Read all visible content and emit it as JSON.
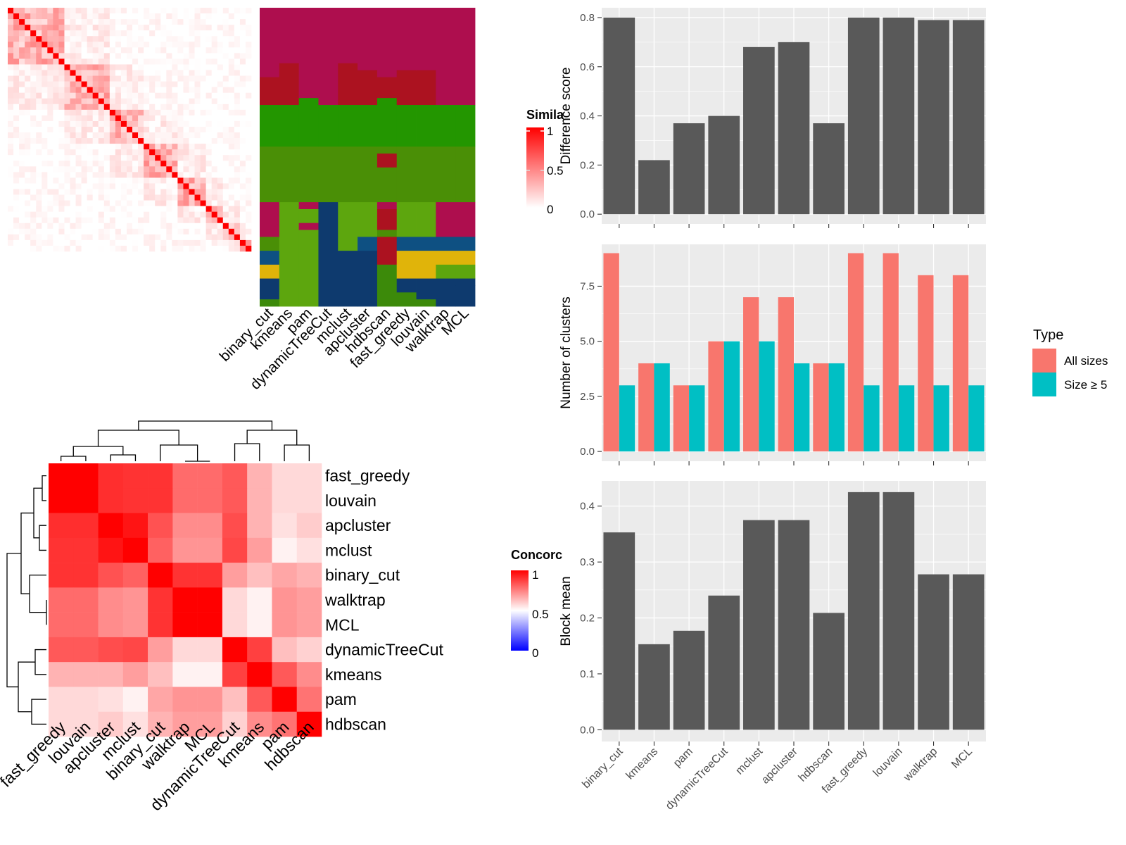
{
  "colors": {
    "panel_bg": "#EBEBEB",
    "grid": "#FFFFFF",
    "bar_dark": "#595959",
    "all_sizes": "#F8766D",
    "size5": "#00BFC4",
    "sim_high": "#FF0000",
    "sim_low": "#FFFFFF",
    "conc_low": "#0000FF",
    "conc_mid": "#FFFFFF",
    "conc_high": "#FF0000",
    "cluster_palette": [
      "#AE0E4E",
      "#AC1220",
      "#239600",
      "#4A8F06",
      "#5DA60E",
      "#0E5082",
      "#0E3A6E",
      "#E0B40A",
      "#3C8A0A"
    ]
  },
  "similarity_legend": {
    "title": "Simila",
    "ticks": [
      "1",
      "0.5",
      "0"
    ]
  },
  "concordance_legend": {
    "title": "Concorc",
    "ticks": [
      "1",
      "0.5",
      "0"
    ]
  },
  "cluster_methods": [
    "binary_cut",
    "kmeans",
    "pam",
    "dynamicTreeCut",
    "mclust",
    "apcluster",
    "hdbscan",
    "fast_greedy",
    "louvain",
    "walktrap",
    "MCL"
  ],
  "concordance_order": [
    "fast_greedy",
    "louvain",
    "apcluster",
    "mclust",
    "binary_cut",
    "walktrap",
    "MCL",
    "dynamicTreeCut",
    "kmeans",
    "pam",
    "hdbscan"
  ],
  "chart_data": [
    {
      "type": "heatmap",
      "name": "term similarity matrix",
      "n_terms": 43,
      "color_scale": [
        0,
        1
      ],
      "legend_title": "Simila"
    },
    {
      "type": "heatmap",
      "name": "cluster assignment per method",
      "columns": [
        "binary_cut",
        "kmeans",
        "pam",
        "dynamicTreeCut",
        "mclust",
        "apcluster",
        "hdbscan",
        "fast_greedy",
        "louvain",
        "walktrap",
        "MCL"
      ],
      "n_rows": 43
    },
    {
      "type": "heatmap",
      "name": "method concordance",
      "legend_title": "Concorc",
      "color_scale": [
        0,
        0.5,
        1
      ],
      "labels": [
        "fast_greedy",
        "louvain",
        "apcluster",
        "mclust",
        "binary_cut",
        "walktrap",
        "MCL",
        "dynamicTreeCut",
        "kmeans",
        "pam",
        "hdbscan"
      ],
      "values": [
        [
          1.0,
          1.0,
          0.82,
          0.8,
          0.8,
          0.58,
          0.58,
          0.65,
          0.3,
          0.15,
          0.15
        ],
        [
          1.0,
          1.0,
          0.82,
          0.8,
          0.8,
          0.58,
          0.58,
          0.65,
          0.3,
          0.15,
          0.15
        ],
        [
          0.82,
          0.82,
          1.0,
          0.92,
          0.68,
          0.45,
          0.45,
          0.7,
          0.3,
          0.12,
          0.2
        ],
        [
          0.8,
          0.8,
          0.92,
          1.0,
          0.62,
          0.42,
          0.42,
          0.72,
          0.38,
          0.05,
          0.12
        ],
        [
          0.8,
          0.8,
          0.68,
          0.62,
          1.0,
          0.8,
          0.8,
          0.38,
          0.25,
          0.35,
          0.3
        ],
        [
          0.58,
          0.58,
          0.45,
          0.42,
          0.8,
          1.0,
          1.0,
          0.15,
          0.05,
          0.42,
          0.38
        ],
        [
          0.58,
          0.58,
          0.45,
          0.42,
          0.8,
          1.0,
          1.0,
          0.15,
          0.05,
          0.42,
          0.38
        ],
        [
          0.65,
          0.65,
          0.7,
          0.72,
          0.38,
          0.15,
          0.15,
          1.0,
          0.75,
          0.25,
          0.18
        ],
        [
          0.3,
          0.3,
          0.3,
          0.38,
          0.25,
          0.05,
          0.05,
          0.75,
          1.0,
          0.65,
          0.45
        ],
        [
          0.15,
          0.15,
          0.12,
          0.05,
          0.35,
          0.42,
          0.42,
          0.25,
          0.65,
          1.0,
          0.55
        ],
        [
          0.15,
          0.15,
          0.2,
          0.12,
          0.3,
          0.38,
          0.38,
          0.18,
          0.45,
          0.55,
          1.0
        ]
      ]
    },
    {
      "type": "bar",
      "categories": [
        "binary_cut",
        "kmeans",
        "pam",
        "dynamicTreeCut",
        "mclust",
        "apcluster",
        "hdbscan",
        "fast_greedy",
        "louvain",
        "walktrap",
        "MCL"
      ],
      "values": [
        0.8,
        0.22,
        0.37,
        0.4,
        0.68,
        0.7,
        0.37,
        0.8,
        0.8,
        0.79,
        0.79
      ],
      "ylabel": "Difference score",
      "ylim": [
        0,
        0.84
      ],
      "yticks": [
        "0.0",
        "0.2",
        "0.4",
        "0.6",
        "0.8"
      ],
      "grid": true
    },
    {
      "type": "bar",
      "categories": [
        "binary_cut",
        "kmeans",
        "pam",
        "dynamicTreeCut",
        "mclust",
        "apcluster",
        "hdbscan",
        "fast_greedy",
        "louvain",
        "walktrap",
        "MCL"
      ],
      "series": [
        {
          "name": "All sizes",
          "values": [
            9,
            4,
            3,
            5,
            7,
            7,
            4,
            9,
            9,
            8,
            8
          ]
        },
        {
          "name": "Size ≥ 5",
          "values": [
            3,
            4,
            3,
            5,
            5,
            4,
            4,
            3,
            3,
            3,
            3
          ]
        }
      ],
      "ylabel": "Number of clusters",
      "ylim": [
        0,
        9.4
      ],
      "yticks": [
        "0.0",
        "2.5",
        "5.0",
        "7.5"
      ],
      "legend_title": "Type",
      "legend_position": "right",
      "grid": true
    },
    {
      "type": "bar",
      "categories": [
        "binary_cut",
        "kmeans",
        "pam",
        "dynamicTreeCut",
        "mclust",
        "apcluster",
        "hdbscan",
        "fast_greedy",
        "louvain",
        "walktrap",
        "MCL"
      ],
      "values": [
        0.353,
        0.153,
        0.177,
        0.24,
        0.375,
        0.375,
        0.209,
        0.425,
        0.425,
        0.278,
        0.278
      ],
      "ylabel": "Block mean",
      "ylim": [
        0,
        0.445
      ],
      "yticks": [
        "0.0",
        "0.1",
        "0.2",
        "0.3",
        "0.4"
      ],
      "grid": true
    }
  ]
}
